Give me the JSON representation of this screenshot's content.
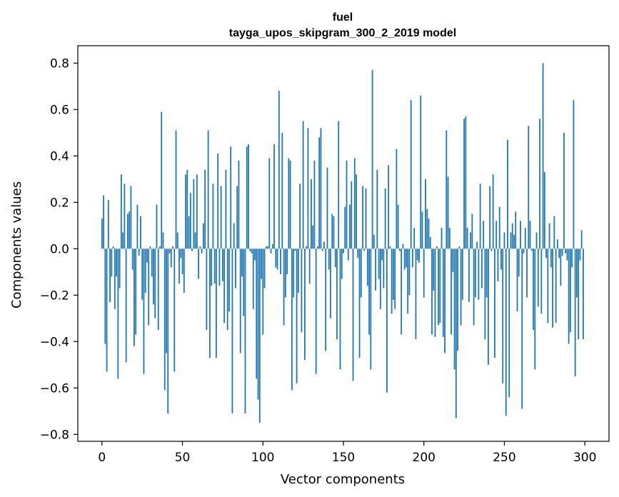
{
  "chart_data": {
    "type": "bar",
    "title": "fuel",
    "subtitle": "tayga_upos_skipgram_300_2_2019 model",
    "xlabel": "Vector components",
    "ylabel": "Components values",
    "xlim": [
      -15,
      315
    ],
    "ylim": [
      -0.83,
      0.875
    ],
    "x_ticks": [
      0,
      50,
      100,
      150,
      200,
      250,
      300
    ],
    "y_ticks": [
      -0.8,
      -0.6,
      -0.4,
      -0.2,
      0.0,
      0.2,
      0.4,
      0.6,
      0.8
    ],
    "x_tick_labels": [
      "0",
      "50",
      "100",
      "150",
      "200",
      "250",
      "300"
    ],
    "y_tick_labels": [
      "−0.8",
      "−0.6",
      "−0.4",
      "−0.2",
      "0.0",
      "0.2",
      "0.4",
      "0.6",
      "0.8"
    ],
    "grid": false,
    "color": "#1f77b4",
    "values": [
      0.13,
      0.23,
      -0.41,
      -0.53,
      0.21,
      -0.23,
      -0.12,
      0.01,
      -0.26,
      -0.12,
      -0.56,
      -0.17,
      0.32,
      0.07,
      0.28,
      -0.49,
      0.15,
      0.16,
      0.27,
      -0.09,
      -0.42,
      -0.37,
      0.19,
      -0.03,
      0.14,
      -0.22,
      -0.54,
      -0.19,
      -0.06,
      -0.33,
      0.01,
      -0.12,
      -0.24,
      -0.3,
      0.19,
      -0.35,
      0.01,
      0.59,
      0.07,
      -0.61,
      -0.45,
      -0.71,
      -0.02,
      -0.08,
      0.01,
      -0.53,
      0.51,
      0.07,
      -0.15,
      -0.04,
      -0.11,
      -0.19,
      0.32,
      0.34,
      0.14,
      0.24,
      -0.01,
      0.3,
      0.07,
      0.32,
      -0.13,
      0.01,
      -0.02,
      0.11,
      0.34,
      -0.35,
      0.51,
      -0.47,
      -0.16,
      0.28,
      -0.15,
      -0.47,
      0.41,
      -0.16,
      0.27,
      -0.14,
      -0.32,
      0.34,
      -0.35,
      -0.27,
      0.44,
      -0.71,
      0.11,
      -0.17,
      0.27,
      0.38,
      -0.45,
      -0.12,
      -0.29,
      -0.71,
      0.44,
      0.45,
      -0.01,
      -0.02,
      -0.26,
      -0.05,
      -0.56,
      -0.65,
      -0.75,
      -0.13,
      -0.37,
      -0.17,
      0.01,
      0.01,
      0.39,
      -0.02,
      0.02,
      0.45,
      -0.08,
      -0.09,
      0.68,
      -0.11,
      0.5,
      -0.33,
      -0.21,
      -0.11,
      0.39,
      0.38,
      -0.61,
      -0.21,
      -0.01,
      -0.58,
      -0.19,
      0.28,
      -0.36,
      0.55,
      -0.48,
      0.01,
      0.52,
      -0.15,
      0.3,
      0.1,
      0.38,
      -0.54,
      0.01,
      0.48,
      0.52,
      -0.01,
      0.03,
      -0.44,
      0.35,
      -0.09,
      -0.3,
      0.15,
      0.14,
      -0.08,
      -0.39,
      0.55,
      -0.52,
      -0.13,
      -0.02,
      0.18,
      0.38,
      -0.05,
      0.19,
      0.29,
      -0.57,
      0.39,
      0.32,
      -0.04,
      -0.47,
      -0.21,
      0.27,
      -0.01,
      0.26,
      -0.16,
      -0.37,
      -0.52,
      0.77,
      0.06,
      -0.18,
      0.34,
      -0.13,
      -0.26,
      -0.05,
      -0.17,
      0.26,
      -0.62,
      0.36,
      0.01,
      -0.28,
      -0.22,
      -0.26,
      0.43,
      0.19,
      -0.01,
      -0.37,
      0.02,
      -0.09,
      -0.08,
      -0.28,
      -0.2,
      0.64,
      -0.08,
      0.09,
      -0.39,
      -0.05,
      -0.06,
      0.66,
      0.16,
      -0.21,
      0.3,
      0.17,
      0.13,
      0.05,
      -0.37,
      -0.18,
      -0.38,
      0.01,
      -0.33,
      -0.32,
      0.09,
      -0.38,
      -0.45,
      0.51,
      0.31,
      0.09,
      -0.37,
      -0.1,
      -0.52,
      -0.73,
      -0.44,
      0.01,
      -0.33,
      -0.22,
      0.56,
      0.57,
      0.09,
      -0.23,
      0.07,
      0.15,
      -0.33,
      -0.21,
      0.03,
      -0.22,
      0.28,
      -0.17,
      0.12,
      -0.39,
      -0.21,
      -0.5,
      0.27,
      -0.01,
      0.32,
      -0.47,
      0.12,
      -0.14,
      0.18,
      -0.09,
      -0.58,
      0.07,
      -0.72,
      0.47,
      -0.64,
      0.07,
      0.11,
      0.06,
      0.16,
      -0.27,
      -0.12,
      0.12,
      -0.69,
      -0.02,
      0.09,
      -0.21,
      0.53,
      0.12,
      -0.01,
      -0.35,
      -0.52,
      0.07,
      -0.25,
      0.56,
      -0.28,
      0.8,
      0.33,
      -0.04,
      -0.32,
      0.11,
      -0.08,
      -0.34,
      0.14,
      -0.32,
      0.04,
      -0.04,
      -0.16,
      -0.03,
      0.5,
      -0.02,
      -0.05,
      -0.41,
      -0.36,
      -0.08,
      0.64,
      -0.55,
      -0.21,
      -0.39,
      -0.05,
      0.08,
      -0.39
    ]
  }
}
